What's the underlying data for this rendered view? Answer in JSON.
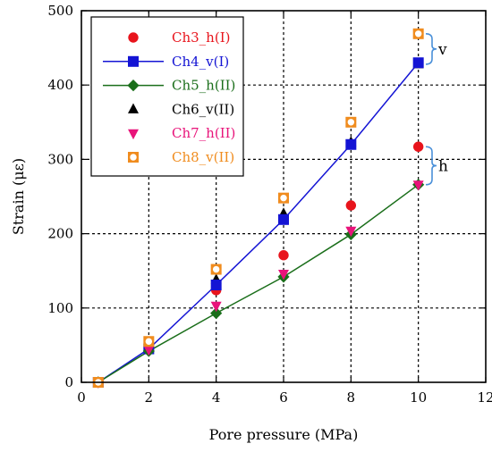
{
  "chart_data": {
    "type": "scatter",
    "xlabel": "Pore pressure (MPa)",
    "ylabel": "Strain (με)",
    "xlim": [
      0,
      12
    ],
    "ylim": [
      0,
      500
    ],
    "xticks": [
      0,
      2,
      4,
      6,
      8,
      10,
      12
    ],
    "yticks": [
      0,
      100,
      200,
      300,
      400,
      500
    ],
    "grid": true,
    "legend_position": "top-left",
    "series": [
      {
        "name": "Ch3_h(I)",
        "color": "#e8141c",
        "marker": "circle-filled",
        "line": false,
        "points": [
          [
            0.5,
            0
          ],
          [
            2,
            44
          ],
          [
            4,
            124
          ],
          [
            6,
            171
          ],
          [
            8,
            238
          ],
          [
            10,
            317
          ]
        ]
      },
      {
        "name": "Ch4_v(I)",
        "color": "#1414d4",
        "marker": "square-filled",
        "line": true,
        "points": [
          [
            0.5,
            0
          ],
          [
            2,
            45
          ],
          [
            4,
            131
          ],
          [
            6,
            219
          ],
          [
            8,
            320
          ],
          [
            10,
            430
          ]
        ]
      },
      {
        "name": "Ch5_h(II)",
        "color": "#1a6e1a",
        "marker": "diamond-filled",
        "line": true,
        "points": [
          [
            0.5,
            0
          ],
          [
            2,
            42
          ],
          [
            4,
            93
          ],
          [
            6,
            142
          ],
          [
            8,
            199
          ],
          [
            10,
            266
          ]
        ]
      },
      {
        "name": "Ch6_v(II)",
        "color": "#000000",
        "marker": "triangle-up-filled",
        "line": false,
        "points": [
          [
            0.5,
            0
          ],
          [
            2,
            50
          ],
          [
            4,
            138
          ],
          [
            6,
            227
          ],
          [
            8,
            323
          ],
          [
            10,
            428
          ]
        ]
      },
      {
        "name": "Ch7_h(II)",
        "color": "#e8147a",
        "marker": "triangle-down-filled",
        "line": false,
        "points": [
          [
            0.5,
            0
          ],
          [
            2,
            44
          ],
          [
            4,
            103
          ],
          [
            6,
            146
          ],
          [
            8,
            204
          ],
          [
            10,
            266
          ]
        ]
      },
      {
        "name": "Ch8_v(II)",
        "color": "#f08c1e",
        "marker": "square-open-circle",
        "line": false,
        "points": [
          [
            0.5,
            0
          ],
          [
            2,
            55
          ],
          [
            4,
            152
          ],
          [
            6,
            248
          ],
          [
            8,
            350
          ],
          [
            10,
            469
          ]
        ]
      }
    ],
    "annotations": [
      {
        "text": "v",
        "y_range": [
          428,
          469
        ]
      },
      {
        "text": "h",
        "y_range": [
          266,
          317
        ]
      }
    ]
  }
}
